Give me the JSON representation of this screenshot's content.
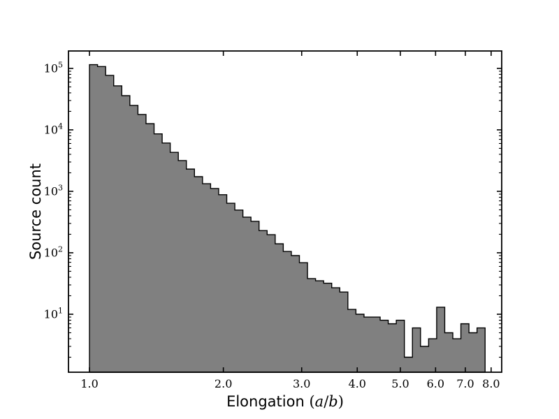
{
  "figure": {
    "background": "#ffffff",
    "xlabel_prefix": "Elongation ",
    "xlabel_math": "(a/b)",
    "xlabel_full": "Elongation (a/b)",
    "ylabel": "Source count"
  },
  "chart_data": {
    "type": "bar",
    "subtype": "histogram-step-filled",
    "x_scale": "log",
    "y_scale": "log",
    "xlim": [
      0.897,
      8.45
    ],
    "ylim": [
      1.14,
      192000
    ],
    "grid": false,
    "legend": "none",
    "title": "",
    "xlabel": "Elongation (a/b)",
    "ylabel": "Source count",
    "x_major_ticks": [
      1,
      2,
      3,
      4,
      5,
      6,
      7,
      8
    ],
    "x_major_tick_labels": [
      "1.0",
      "2.0",
      "3.0",
      "4.0",
      "5.0",
      "6.0",
      "7.0",
      "8.0"
    ],
    "y_major_ticks": [
      10,
      100,
      1000,
      10000,
      100000
    ],
    "y_major_tick_exponents": [
      "1",
      "2",
      "3",
      "4",
      "5"
    ],
    "y_tick_base": "10",
    "y_minor_subs": [
      2,
      3,
      4,
      5,
      6,
      7,
      8,
      9
    ],
    "bin_edges": [
      1.0,
      1.0427,
      1.0873,
      1.1336,
      1.1821,
      1.2325,
      1.2851,
      1.34,
      1.3972,
      1.4569,
      1.5191,
      1.5839,
      1.6515,
      1.722,
      1.7955,
      1.8722,
      1.9521,
      2.0354,
      2.1223,
      2.2129,
      2.3073,
      2.4058,
      2.5085,
      2.6156,
      2.7272,
      2.8436,
      2.965,
      3.0916,
      3.2235,
      3.3611,
      3.5046,
      3.6542,
      3.8102,
      3.9728,
      4.1424,
      4.3192,
      4.5036,
      4.6958,
      4.8962,
      5.1052,
      5.3231,
      5.5503,
      5.7872,
      6.0342,
      6.2918,
      6.5603,
      6.8403,
      7.1323,
      7.4367,
      7.7541
    ],
    "counts": [
      115000,
      107000,
      77000,
      52000,
      36000,
      25000,
      17800,
      12600,
      8600,
      6100,
      4300,
      3160,
      2300,
      1730,
      1330,
      1110,
      880,
      640,
      495,
      380,
      325,
      230,
      197,
      140,
      105,
      90,
      69,
      38,
      35,
      32,
      27,
      23,
      12,
      10,
      9,
      9,
      8,
      7,
      8,
      2,
      6,
      3,
      4,
      13,
      5,
      4,
      7,
      5,
      6
    ],
    "colors": {
      "bar_fill": "#808080",
      "bar_edge": "#000000",
      "spine": "#000000",
      "tick": "#000000",
      "text": "#000000",
      "background": "#ffffff"
    }
  }
}
